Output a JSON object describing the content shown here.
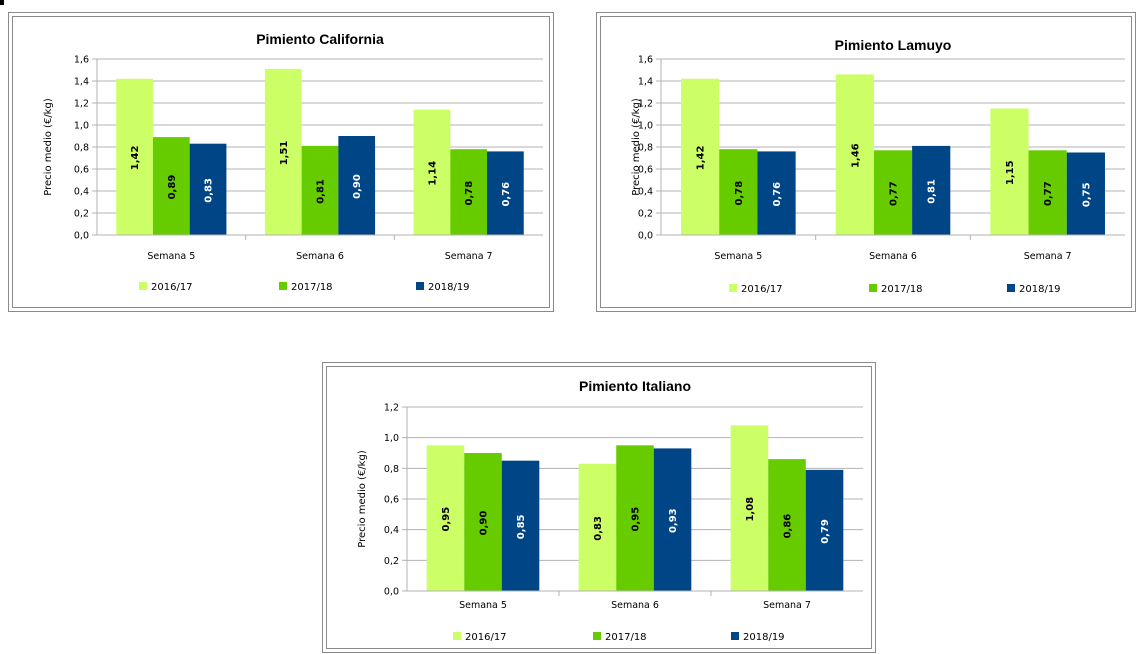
{
  "colors": {
    "s2016": "#ccff66",
    "s2017": "#66cc00",
    "s2018": "#004586"
  },
  "chart_data": [
    {
      "type": "bar",
      "title": "Pimiento California",
      "ylabel": "Precio medio (€/kg)",
      "xlabel": "",
      "categories": [
        "Semana 5",
        "Semana 6",
        "Semana 7"
      ],
      "ylim": [
        0,
        1.6
      ],
      "yticks": [
        "0,0",
        "0,2",
        "0,4",
        "0,6",
        "0,8",
        "1,0",
        "1,2",
        "1,4",
        "1,6"
      ],
      "grid": true,
      "legend_position": "bottom",
      "series": [
        {
          "name": "2016/17",
          "values": [
            1.42,
            1.51,
            1.14
          ],
          "labels": [
            "1,42",
            "1,51",
            "1,14"
          ]
        },
        {
          "name": "2017/18",
          "values": [
            0.89,
            0.81,
            0.78
          ],
          "labels": [
            "0,89",
            "0,81",
            "0,78"
          ]
        },
        {
          "name": "2018/19",
          "values": [
            0.83,
            0.9,
            0.76
          ],
          "labels": [
            "0,83",
            "0,90",
            "0,76"
          ]
        }
      ]
    },
    {
      "type": "bar",
      "title": "Pimiento Lamuyo",
      "ylabel": "Precio medio (€/kg)",
      "xlabel": "",
      "categories": [
        "Semana 5",
        "Semana 6",
        "Semana 7"
      ],
      "ylim": [
        0,
        1.6
      ],
      "yticks": [
        "0,0",
        "0,2",
        "0,4",
        "0,6",
        "0,8",
        "1,0",
        "1,2",
        "1,4",
        "1,6"
      ],
      "grid": true,
      "legend_position": "bottom",
      "series": [
        {
          "name": "2016/17",
          "values": [
            1.42,
            1.46,
            1.15
          ],
          "labels": [
            "1,42",
            "1,46",
            "1,15"
          ]
        },
        {
          "name": "2017/18",
          "values": [
            0.78,
            0.77,
            0.77
          ],
          "labels": [
            "0,78",
            "0,77",
            "0,77"
          ]
        },
        {
          "name": "2018/19",
          "values": [
            0.76,
            0.81,
            0.75
          ],
          "labels": [
            "0,76",
            "0,81",
            "0,75"
          ]
        }
      ]
    },
    {
      "type": "bar",
      "title": "Pimiento Italiano",
      "ylabel": "Precio medio (€/kg)",
      "xlabel": "",
      "categories": [
        "Semana 5",
        "Semana 6",
        "Semana 7"
      ],
      "ylim": [
        0,
        1.2
      ],
      "yticks": [
        "0,0",
        "0,2",
        "0,4",
        "0,6",
        "0,8",
        "1,0",
        "1,2"
      ],
      "grid": true,
      "legend_position": "bottom",
      "series": [
        {
          "name": "2016/17",
          "values": [
            0.95,
            0.83,
            1.08
          ],
          "labels": [
            "0,95",
            "0,83",
            "1,08"
          ]
        },
        {
          "name": "2017/18",
          "values": [
            0.9,
            0.95,
            0.86
          ],
          "labels": [
            "0,90",
            "0,95",
            "0,86"
          ]
        },
        {
          "name": "2018/19",
          "values": [
            0.85,
            0.93,
            0.79
          ],
          "labels": [
            "0,85",
            "0,93",
            "0,79"
          ]
        }
      ]
    }
  ]
}
